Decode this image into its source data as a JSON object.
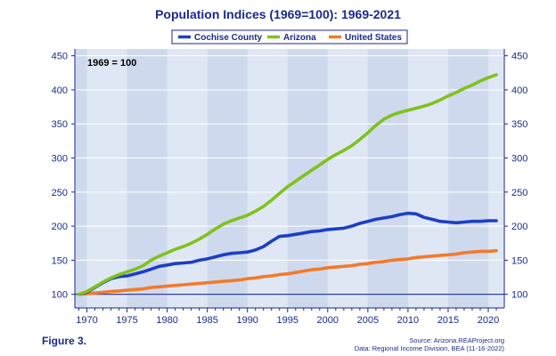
{
  "chart_data": {
    "type": "line",
    "title": "Population Indices (1969=100): 1969-2021",
    "annotation": "1969 = 100",
    "xlim": [
      1968.5,
      2022
    ],
    "ylim": [
      80,
      460
    ],
    "x_ticks": [
      1970,
      1975,
      1980,
      1985,
      1990,
      1995,
      2000,
      2005,
      2010,
      2015,
      2020
    ],
    "y_ticks": [
      100,
      150,
      200,
      250,
      300,
      350,
      400,
      450
    ],
    "grid": "alternating vertical bands, horizontal gridlines",
    "legend_position": "top-center",
    "x": [
      1969,
      1970,
      1971,
      1972,
      1973,
      1974,
      1975,
      1976,
      1977,
      1978,
      1979,
      1980,
      1981,
      1982,
      1983,
      1984,
      1985,
      1986,
      1987,
      1988,
      1989,
      1990,
      1991,
      1992,
      1993,
      1994,
      1995,
      1996,
      1997,
      1998,
      1999,
      2000,
      2001,
      2002,
      2003,
      2004,
      2005,
      2006,
      2007,
      2008,
      2009,
      2010,
      2011,
      2012,
      2013,
      2014,
      2015,
      2016,
      2017,
      2018,
      2019,
      2020,
      2021
    ],
    "series": [
      {
        "name": "Cochise County",
        "color": "#1c3fc4",
        "values": [
          100,
          103,
          110,
          117,
          123,
          126,
          127,
          130,
          133,
          137,
          141,
          143,
          145,
          146,
          147,
          150,
          152,
          155,
          158,
          160,
          161,
          162,
          165,
          170,
          178,
          185,
          186,
          188,
          190,
          192,
          193,
          195,
          196,
          197,
          200,
          204,
          207,
          210,
          212,
          214,
          217,
          219,
          218,
          213,
          210,
          207,
          206,
          205,
          206,
          207,
          207,
          208,
          208
        ]
      },
      {
        "name": "Arizona",
        "color": "#80c21d",
        "values": [
          100,
          104,
          111,
          118,
          124,
          129,
          133,
          137,
          142,
          150,
          156,
          161,
          166,
          170,
          175,
          181,
          188,
          196,
          203,
          208,
          212,
          216,
          222,
          229,
          238,
          248,
          258,
          266,
          274,
          282,
          290,
          298,
          305,
          311,
          318,
          327,
          337,
          348,
          357,
          363,
          367,
          370,
          373,
          376,
          380,
          385,
          391,
          396,
          402,
          407,
          413,
          418,
          422
        ]
      },
      {
        "name": "United States",
        "color": "#f27a29",
        "values": [
          100,
          101,
          102,
          103,
          104,
          105,
          106,
          107,
          108,
          110,
          111,
          112,
          113,
          114,
          115,
          116,
          117,
          118,
          119,
          120,
          121,
          123,
          124,
          126,
          127,
          129,
          130,
          132,
          134,
          136,
          137,
          139,
          140,
          141,
          142,
          144,
          145,
          147,
          148,
          150,
          151,
          152,
          154,
          155,
          156,
          157,
          158,
          159,
          161,
          162,
          163,
          163,
          164
        ]
      }
    ]
  },
  "footer": {
    "figure_label": "Figure 3.",
    "source_line1": "Source: Arizona.REAProject.org",
    "source_line2": "Data: Regional Income Division, BEA (11-16-2022)"
  }
}
